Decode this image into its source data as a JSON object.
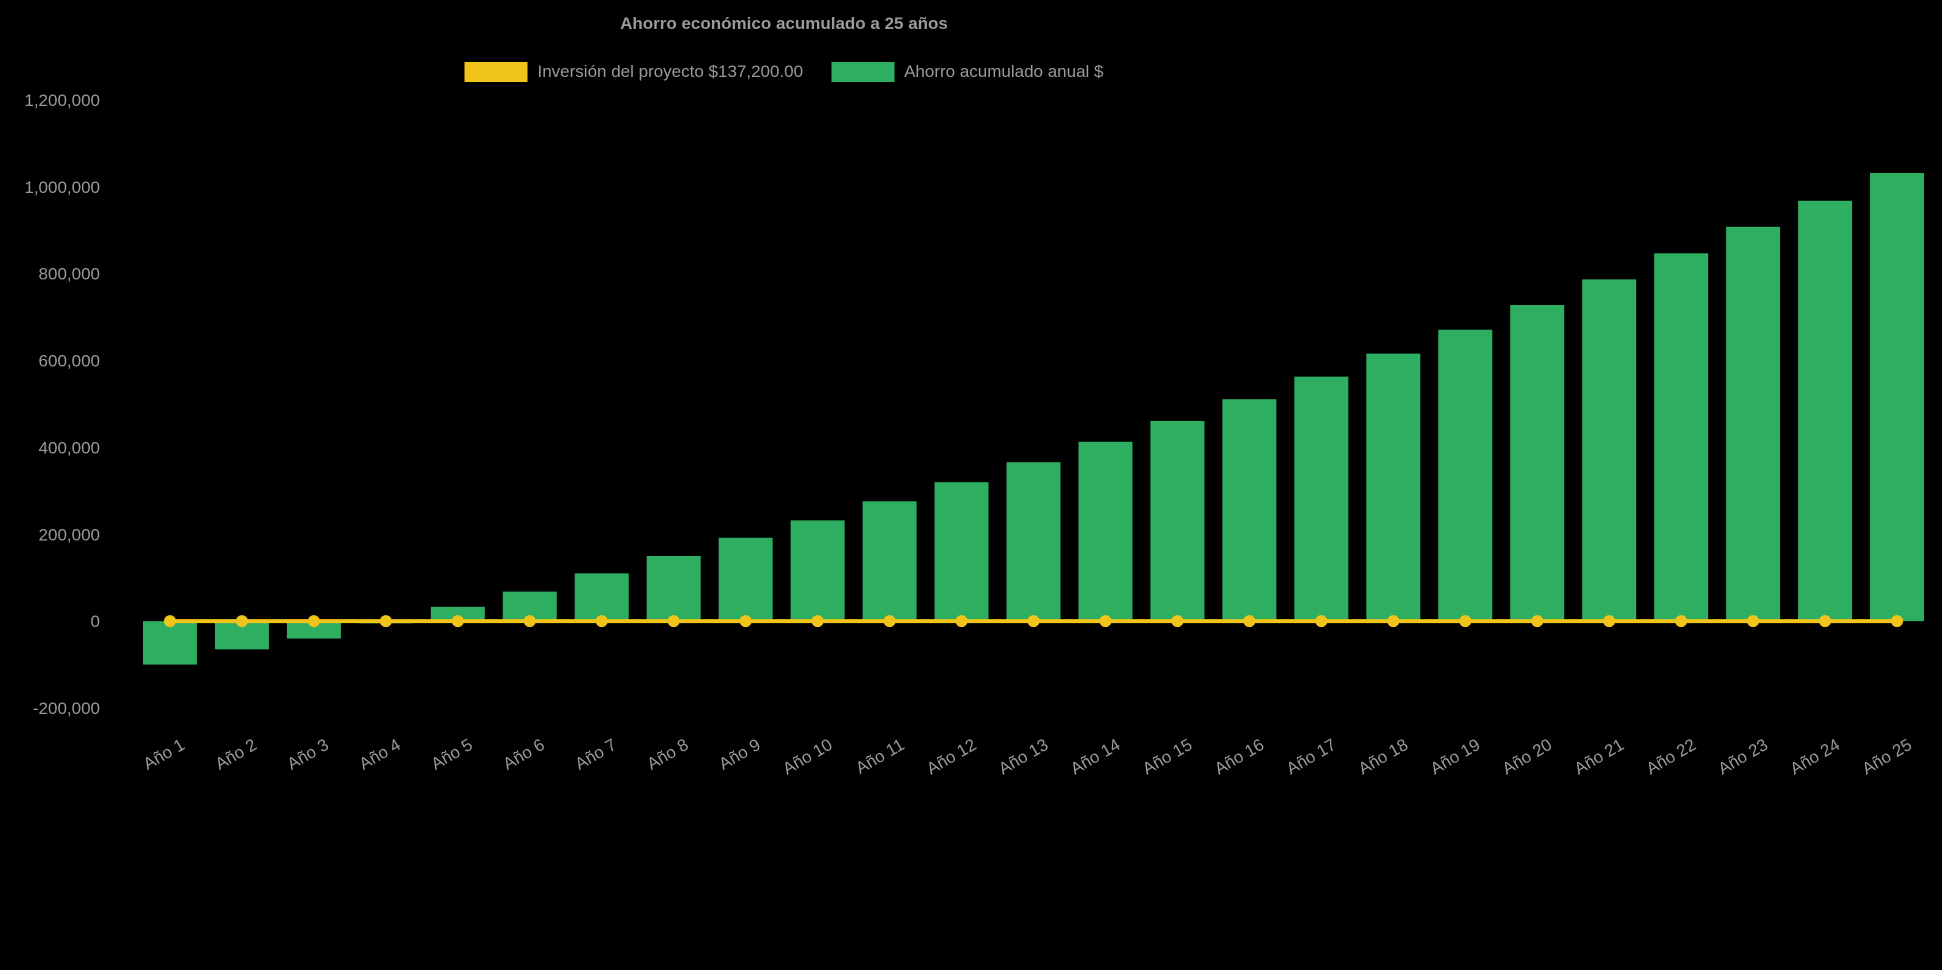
{
  "page": {
    "background": "#000000"
  },
  "colors": {
    "investment": "#F0C41B",
    "savings": "#2EAE60",
    "text": "#9a9a9a",
    "background": "#000000"
  },
  "chart_data": {
    "type": "bar",
    "title": "Ahorro económico acumulado a 25 años",
    "xlabel": "",
    "ylabel": "",
    "grid": false,
    "legend_position": "top",
    "ylim": [
      -200000,
      1200000
    ],
    "y_tick_step": 200000,
    "y_tick_labels": [
      "-200,000",
      "0",
      "200,000",
      "400,000",
      "600,000",
      "800,000",
      "1,000,000",
      "1,200,000"
    ],
    "categories": [
      "Año 1",
      "Año 2",
      "Año 3",
      "Año 4",
      "Año 5",
      "Año 6",
      "Año 7",
      "Año 8",
      "Año 9",
      "Año 10",
      "Año 11",
      "Año 12",
      "Año 13",
      "Año 14",
      "Año 15",
      "Año 16",
      "Año 17",
      "Año 18",
      "Año 19",
      "Año 20",
      "Año 21",
      "Año 22",
      "Año 23",
      "Año 24",
      "Año 25"
    ],
    "series": [
      {
        "name": "Inversión del proyecto $137,200.00",
        "type": "line",
        "color": "#F0C41B",
        "values": [
          0,
          0,
          0,
          0,
          0,
          0,
          0,
          0,
          0,
          0,
          0,
          0,
          0,
          0,
          0,
          0,
          0,
          0,
          0,
          0,
          0,
          0,
          0,
          0,
          0
        ]
      },
      {
        "name": "Ahorro acumulado anual $",
        "type": "bar",
        "color": "#2EAE60",
        "values": [
          -100000,
          -65000,
          -40000,
          -5000,
          33000,
          68000,
          110000,
          150000,
          192000,
          232000,
          276000,
          320000,
          366000,
          413000,
          461000,
          511000,
          563000,
          616000,
          671000,
          728000,
          787000,
          847000,
          908000,
          968000,
          1032000
        ]
      }
    ]
  }
}
